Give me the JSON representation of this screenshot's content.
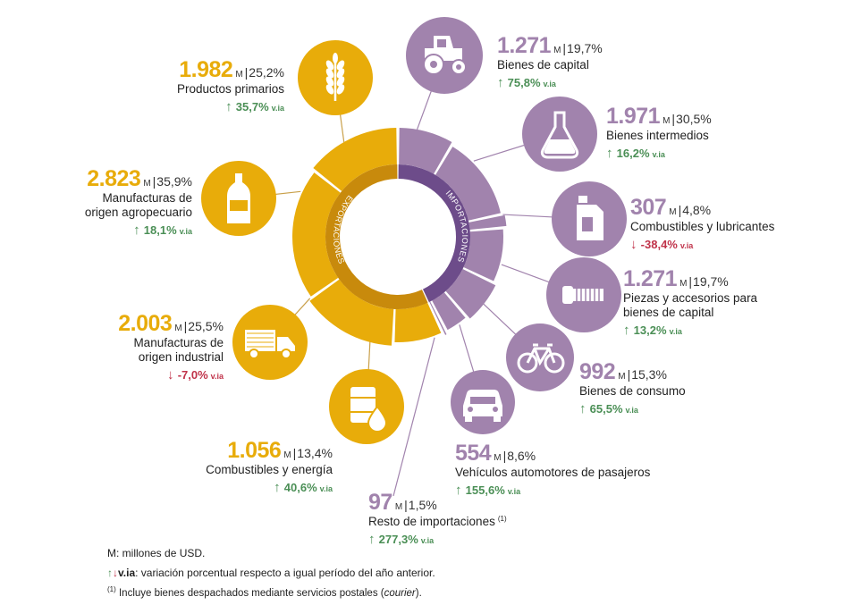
{
  "colors": {
    "exports": "#e8ac0a",
    "exports_dark": "#c88a0c",
    "imports": "#a183ad",
    "imports_dark": "#6d4c8a",
    "up": "#4b8f56",
    "down": "#c0334a",
    "line_exp": "#c9a04a",
    "line_imp": "#a183ad"
  },
  "chart_data": {
    "type": "donut",
    "rings": {
      "exportaciones": "EXPORTACIONES",
      "importaciones": "IMPORTACIONES"
    },
    "exports": [
      {
        "label": "Productos primarios",
        "value": "1.982",
        "unit": "M",
        "share": "25,2%",
        "var": "35,7%",
        "dir": "up",
        "icon": "wheat-icon"
      },
      {
        "label": "Manufacturas de origen agropecuario",
        "label_lines": [
          "Manufacturas de",
          "origen agropecuario"
        ],
        "value": "2.823",
        "unit": "M",
        "share": "35,9%",
        "var": "18,1%",
        "dir": "up",
        "icon": "bottle-icon"
      },
      {
        "label": "Manufacturas de origen industrial",
        "label_lines": [
          "Manufacturas de",
          "origen industrial"
        ],
        "value": "2.003",
        "unit": "M",
        "share": "25,5%",
        "var": "-7,0%",
        "dir": "down",
        "icon": "truck-icon"
      },
      {
        "label": "Combustibles y energía",
        "value": "1.056",
        "unit": "M",
        "share": "13,4%",
        "var": "40,6%",
        "dir": "up",
        "icon": "oil-barrel-icon"
      }
    ],
    "imports": [
      {
        "label": "Bienes de capital",
        "value": "1.271",
        "unit": "M",
        "share": "19,7%",
        "var": "75,8%",
        "dir": "up",
        "icon": "tractor-icon"
      },
      {
        "label": "Bienes intermedios",
        "value": "1.971",
        "unit": "M",
        "share": "30,5%",
        "var": "16,2%",
        "dir": "up",
        "icon": "flask-icon"
      },
      {
        "label": "Combustibles y lubricantes",
        "value": "307",
        "unit": "M",
        "share": "4,8%",
        "var": "-38,4%",
        "dir": "down",
        "icon": "jerrycan-icon"
      },
      {
        "label": "Piezas y accesorios para bienes de capital",
        "label_lines": [
          "Piezas y accesorios para",
          "bienes de capital"
        ],
        "value": "1.271",
        "unit": "M",
        "share": "19,7%",
        "var": "13,2%",
        "dir": "up",
        "icon": "bolt-icon"
      },
      {
        "label": "Bienes de consumo",
        "value": "992",
        "unit": "M",
        "share": "15,3%",
        "var": "65,5%",
        "dir": "up",
        "icon": "bicycle-icon"
      },
      {
        "label": "Vehículos automotores de pasajeros",
        "value": "554",
        "unit": "M",
        "share": "8,6%",
        "var": "155,6%",
        "dir": "up",
        "icon": "car-icon"
      },
      {
        "label": "Resto de importaciones",
        "note_mark": "(1)",
        "value": "97",
        "unit": "M",
        "share": "1,5%",
        "var": "277,3%",
        "dir": "up",
        "icon": "none"
      }
    ],
    "via_label": "v.ia"
  },
  "legend": {
    "m": "M: millones de USD.",
    "via_key": "v.ia",
    "via_text": ": variación porcentual respecto a igual período del año anterior.",
    "note_mark": "(1)",
    "note_text": " Incluye bienes despachados mediante servicios postales (",
    "note_italic": "courier",
    "note_end": ")."
  }
}
